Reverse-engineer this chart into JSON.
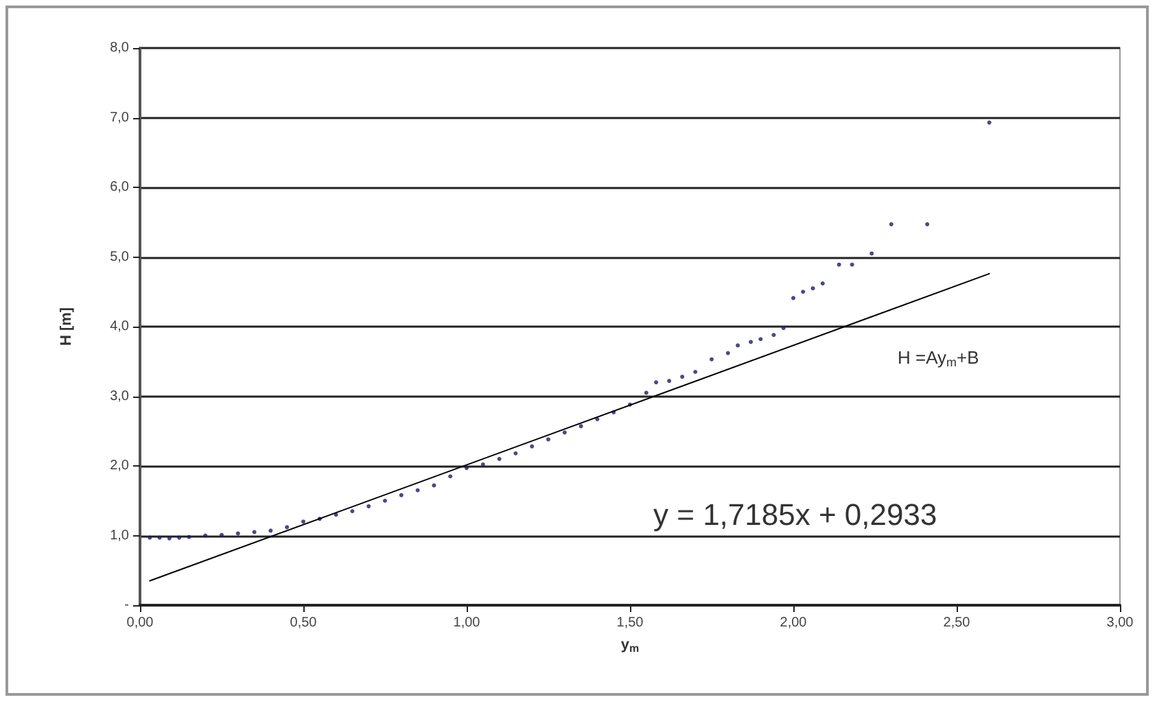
{
  "chart_data": {
    "type": "scatter",
    "xlabel": "y$_{m}$",
    "ylabel": "H [m]",
    "xlim": [
      0,
      3
    ],
    "xticks": [
      {
        "value": 0,
        "label": "0,00"
      },
      {
        "value": 0.5,
        "label": "0,50"
      },
      {
        "value": 1,
        "label": "1,00"
      },
      {
        "value": 1.5,
        "label": "1,50"
      },
      {
        "value": 2,
        "label": "2,00"
      },
      {
        "value": 2.5,
        "label": "2,50"
      },
      {
        "value": 3,
        "label": "3,00"
      }
    ],
    "ylim": [
      0,
      8
    ],
    "yticks": [
      {
        "value": 0,
        "label": "-"
      },
      {
        "value": 1,
        "label": "1,0"
      },
      {
        "value": 2,
        "label": "2,0"
      },
      {
        "value": 3,
        "label": "3,0"
      },
      {
        "value": 4,
        "label": "4,0"
      },
      {
        "value": 5,
        "label": "5,0"
      },
      {
        "value": 6,
        "label": "6,0"
      },
      {
        "value": 7,
        "label": "7,0"
      },
      {
        "value": 8,
        "label": "8,0"
      }
    ],
    "grid": "y",
    "series": [
      {
        "marker": "circle",
        "color": "#1c1c6e",
        "x": [
          0.03,
          0.06,
          0.09,
          0.12,
          0.15,
          0.2,
          0.25,
          0.3,
          0.35,
          0.4,
          0.45,
          0.5,
          0.55,
          0.6,
          0.65,
          0.7,
          0.75,
          0.8,
          0.85,
          0.9,
          0.95,
          1.0,
          1.05,
          1.1,
          1.15,
          1.2,
          1.25,
          1.3,
          1.35,
          1.4,
          1.45,
          1.5,
          1.55,
          1.58,
          1.62,
          1.66,
          1.7,
          1.75,
          1.8,
          1.83,
          1.87,
          1.9,
          1.94,
          1.97,
          2.0,
          2.03,
          2.06,
          2.09,
          2.14,
          2.18,
          2.24,
          2.3,
          2.41,
          2.6
        ],
        "values": [
          0.97,
          0.97,
          0.96,
          0.97,
          0.98,
          1.0,
          1.01,
          1.03,
          1.05,
          1.07,
          1.12,
          1.2,
          1.24,
          1.3,
          1.35,
          1.42,
          1.5,
          1.58,
          1.65,
          1.72,
          1.85,
          1.97,
          2.02,
          2.1,
          2.18,
          2.28,
          2.38,
          2.48,
          2.57,
          2.67,
          2.77,
          2.88,
          3.05,
          3.2,
          3.22,
          3.28,
          3.35,
          3.53,
          3.62,
          3.73,
          3.78,
          3.82,
          3.88,
          3.98,
          4.41,
          4.5,
          4.55,
          4.62,
          4.89,
          4.89,
          5.05,
          5.47,
          5.47,
          6.93
        ]
      },
      {
        "type": "line",
        "marker": "none",
        "color": "#000000",
        "line_style": "solid",
        "x": [
          0.03,
          2.6
        ],
        "values": [
          0.35,
          4.76
        ]
      }
    ],
    "annotations": [
      {
        "text": "H =Ay$_{m}$+B"
      },
      {
        "text": "y = 1,7185x + 0,2933"
      }
    ]
  }
}
